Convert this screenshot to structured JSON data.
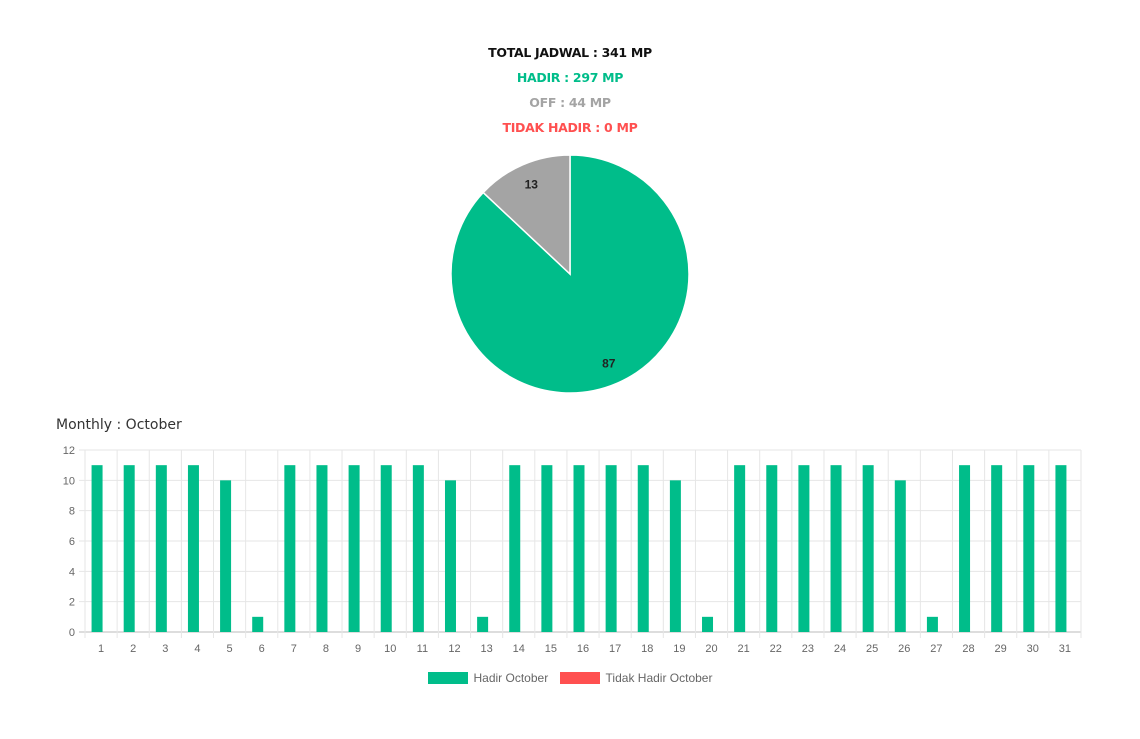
{
  "summary": {
    "total": "TOTAL JADWAL : 341 MP",
    "hadir": "HADIR : 297 MP",
    "off": "OFF : 44 MP",
    "tidak_hadir": "TIDAK HADIR : 0 MP"
  },
  "colors": {
    "hadir": "#00BD8A",
    "off": "#A4A4A4",
    "tidak_hadir": "#FF5050",
    "total": "#111111"
  },
  "monthly": {
    "title": "Monthly : October"
  },
  "chart_data": [
    {
      "type": "pie",
      "slices": [
        {
          "label": "87",
          "value": 87,
          "color": "#00BD8A"
        },
        {
          "label": "13",
          "value": 13,
          "color": "#A4A4A4"
        }
      ],
      "start": "top",
      "direction": "clockwise"
    },
    {
      "type": "bar",
      "categories": [
        "1",
        "2",
        "3",
        "4",
        "5",
        "6",
        "7",
        "8",
        "9",
        "10",
        "11",
        "12",
        "13",
        "14",
        "15",
        "16",
        "17",
        "18",
        "19",
        "20",
        "21",
        "22",
        "23",
        "24",
        "25",
        "26",
        "27",
        "28",
        "29",
        "30",
        "31"
      ],
      "series": [
        {
          "name": "Hadir October",
          "color": "#00BD8A",
          "values": [
            11,
            11,
            11,
            11,
            10,
            1,
            11,
            11,
            11,
            11,
            11,
            10,
            1,
            11,
            11,
            11,
            11,
            11,
            10,
            1,
            11,
            11,
            11,
            11,
            11,
            10,
            1,
            11,
            11,
            11,
            11
          ]
        },
        {
          "name": "Tidak Hadir October",
          "color": "#FF5050",
          "values": [
            0,
            0,
            0,
            0,
            0,
            0,
            0,
            0,
            0,
            0,
            0,
            0,
            0,
            0,
            0,
            0,
            0,
            0,
            0,
            0,
            0,
            0,
            0,
            0,
            0,
            0,
            0,
            0,
            0,
            0,
            0
          ]
        }
      ],
      "yticks": [
        0,
        2,
        4,
        6,
        8,
        10,
        12
      ],
      "ylim": [
        0,
        12
      ],
      "grid": true,
      "legend": "bottom"
    }
  ]
}
